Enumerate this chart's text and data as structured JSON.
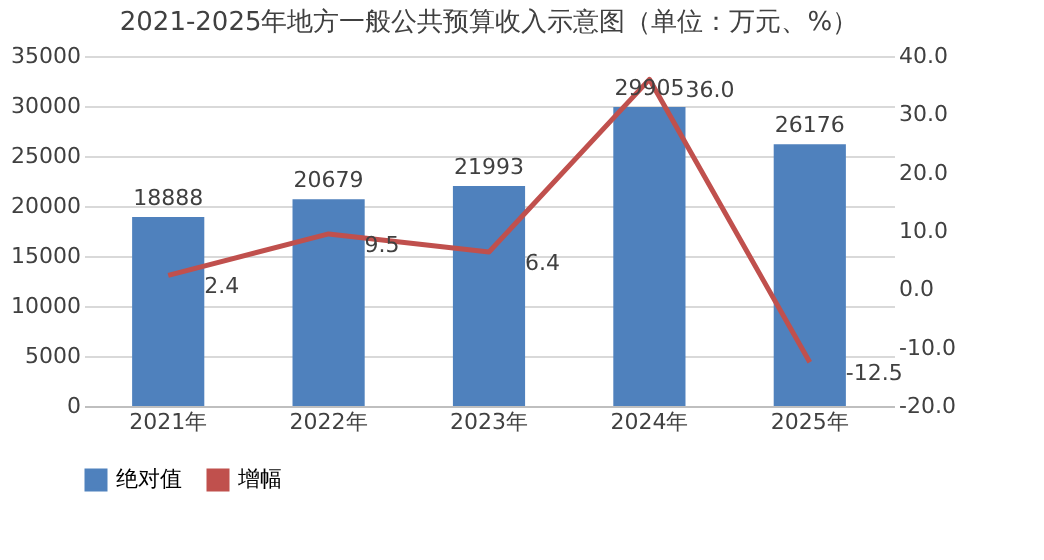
{
  "chart_data": {
    "type": "bar",
    "title": "2021-2025年地方一般公共预算收入示意图（单位：万元、%）",
    "categories": [
      "2021年",
      "2022年",
      "2023年",
      "2024年",
      "2025年"
    ],
    "series": [
      {
        "name": "绝对值",
        "color": "#4f81bd",
        "values": [
          18888,
          20679,
          21993,
          29905,
          26176
        ],
        "value_labels": [
          "18888",
          "20679",
          "21993",
          "29905",
          "26176"
        ]
      },
      {
        "name": "增幅",
        "type": "line",
        "axis": "y2",
        "color": "#c0504d",
        "values": [
          2.4,
          9.5,
          6.4,
          36.0,
          -12.5
        ],
        "value_labels": [
          "2.4",
          "9.5",
          "6.4",
          "36.0",
          "-12.5"
        ]
      }
    ],
    "ylim": [
      0,
      35000
    ],
    "yticks": [
      0,
      5000,
      10000,
      15000,
      20000,
      25000,
      30000,
      35000
    ],
    "y2lim": [
      -20,
      40
    ],
    "y2ticks": [
      {
        "value": -20,
        "label": "-20.0"
      },
      {
        "value": -10,
        "label": "-10.0"
      },
      {
        "value": 0,
        "label": "0.0"
      },
      {
        "value": 10,
        "label": "10.0"
      },
      {
        "value": 20,
        "label": "20.0"
      },
      {
        "value": 30,
        "label": "30.0"
      },
      {
        "value": 40,
        "label": "40.0"
      }
    ],
    "grid": "y",
    "legend": "bottom",
    "marker": "none",
    "line_style": "solid"
  }
}
